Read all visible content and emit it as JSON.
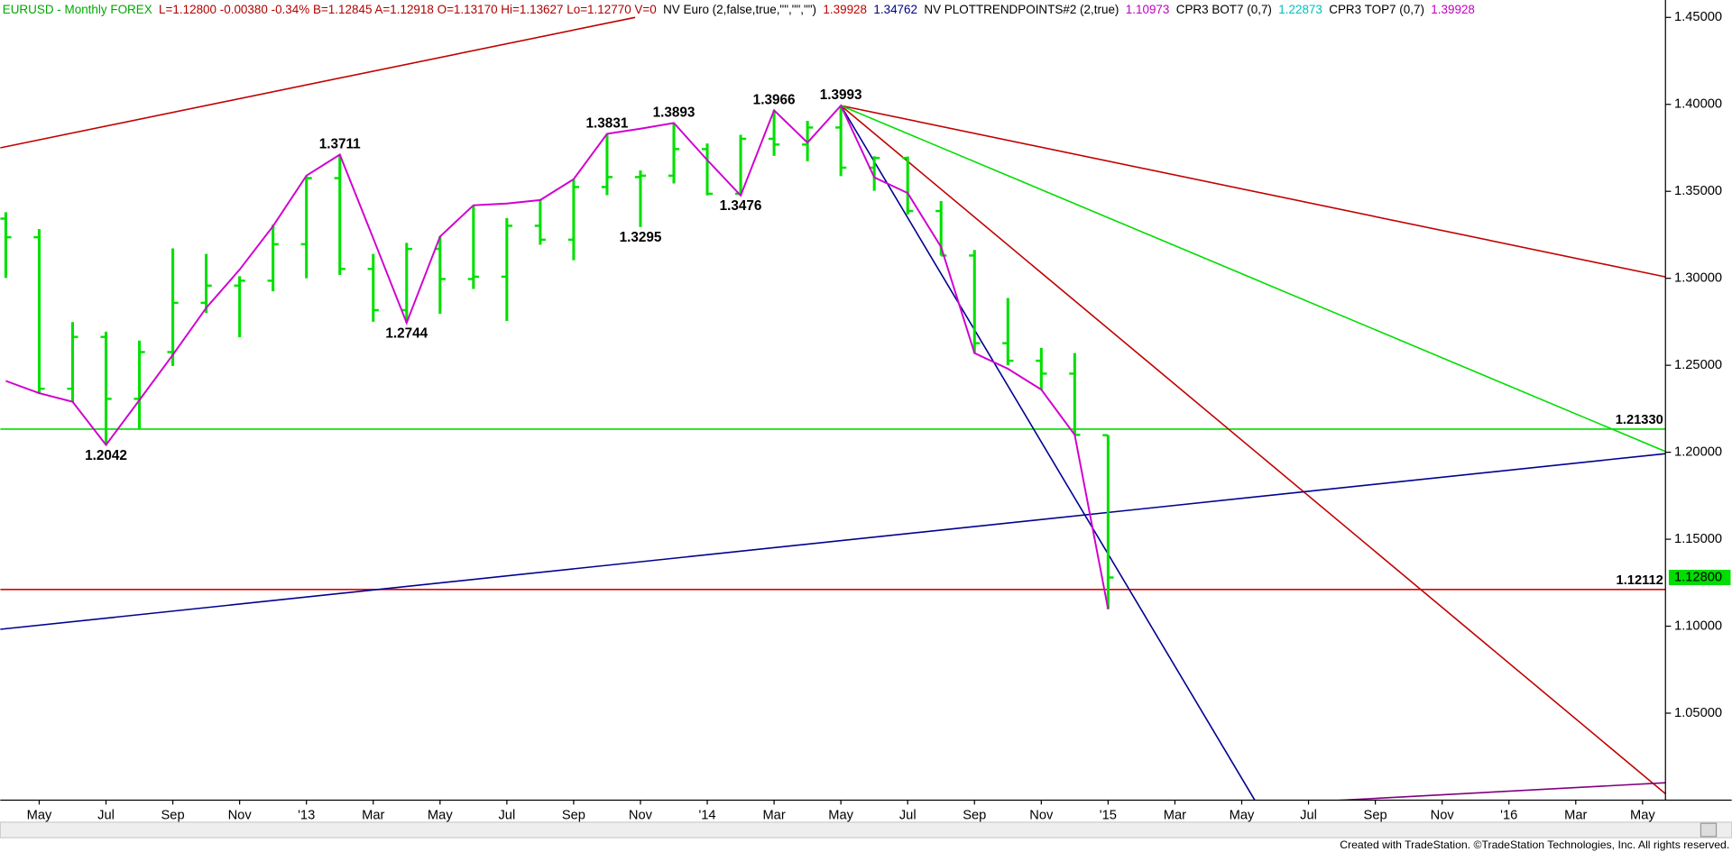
{
  "chart_data": {
    "type": "ohlc",
    "header": [
      {
        "text": "EURUSD - Monthly  FOREX",
        "color": "#00a800"
      },
      {
        "text": "L=1.12800  -0.00380  -0.34%  B=1.12845  A=1.12918  O=1.13170  Hi=1.13627  Lo=1.12770  V=0",
        "color": "#b00000"
      },
      {
        "text": "NV Euro (2,false,true,\"\",\"\",\"\")",
        "color": "#000000"
      },
      {
        "text": "1.39928",
        "color": "#c00000"
      },
      {
        "text": "1.34762",
        "color": "#000080"
      },
      {
        "text": "NV  PLOTTRENDPOINTS#2 (2,true)",
        "color": "#000000"
      },
      {
        "text": "1.10973",
        "color": "#c000c0"
      },
      {
        "text": "CPR3 BOT7 (0,7)",
        "color": "#000000"
      },
      {
        "text": "1.22873",
        "color": "#00c0c0"
      },
      {
        "text": "CPR3 TOP7 (0,7)",
        "color": "#000000"
      },
      {
        "text": "1.39928",
        "color": "#c000c0"
      }
    ],
    "footer": "Created with TradeStation. ©TradeStation Technologies, Inc. All rights reserved.",
    "categories": [
      null,
      "May",
      null,
      "Jul",
      null,
      "Sep",
      null,
      "Nov",
      null,
      "'13",
      null,
      "Mar",
      null,
      "May",
      null,
      "Jul",
      null,
      "Sep",
      null,
      "Nov",
      null,
      "'14",
      null,
      "Mar",
      null,
      "May",
      null,
      "Jul",
      null,
      "Sep",
      null,
      "Nov",
      null,
      "'15",
      null,
      "Mar",
      null,
      "May",
      null,
      "Jul",
      null,
      "Sep",
      null,
      "Nov",
      null,
      "'16",
      null,
      "Mar",
      null,
      "May"
    ],
    "open": [
      1.3343,
      1.3236,
      1.2365,
      1.2663,
      1.2307,
      1.2576,
      1.2859,
      1.2958,
      1.2986,
      1.3196,
      1.3576,
      1.3054,
      1.2817,
      1.3169,
      1.2996,
      1.3009,
      1.3302,
      1.3222,
      1.3525,
      1.3582,
      1.359,
      1.3743,
      1.3486,
      1.3802,
      1.3769,
      1.3867,
      1.3636,
      1.3692,
      1.3387,
      1.3131,
      1.2627,
      1.2526,
      1.2452,
      1.2098,
      null,
      null,
      null,
      null,
      null,
      null,
      null,
      null,
      null,
      null,
      null,
      null,
      null,
      null,
      null,
      null
    ],
    "high": [
      1.338,
      1.3283,
      1.2748,
      1.2693,
      1.2642,
      1.3172,
      1.314,
      1.3012,
      1.3308,
      1.3587,
      1.3711,
      1.314,
      1.3204,
      1.3242,
      1.3416,
      1.3346,
      1.3451,
      1.3568,
      1.3831,
      1.362,
      1.3893,
      1.3775,
      1.3825,
      1.3966,
      1.3905,
      1.3993,
      1.3702,
      1.37,
      1.3444,
      1.3163,
      1.2887,
      1.26,
      1.257,
      1.2098,
      null,
      null,
      null,
      null,
      null,
      null,
      null,
      null,
      null,
      null,
      null,
      null,
      null,
      null,
      null,
      null
    ],
    "low": [
      1.3002,
      1.2334,
      1.2288,
      1.2042,
      1.2134,
      1.2496,
      1.2801,
      1.2661,
      1.2925,
      1.3,
      1.3019,
      1.275,
      1.2744,
      1.2796,
      1.2939,
      1.2755,
      1.3193,
      1.3104,
      1.3478,
      1.3295,
      1.3545,
      1.3477,
      1.3476,
      1.3704,
      1.3673,
      1.3587,
      1.3503,
      1.3367,
      1.3131,
      1.2571,
      1.25,
      1.2359,
      1.21,
      1.1098,
      null,
      null,
      null,
      null,
      null,
      null,
      null,
      null,
      null,
      null,
      null,
      null,
      null,
      null,
      null,
      null
    ],
    "close": [
      1.3236,
      1.2365,
      1.2663,
      1.2307,
      1.2576,
      1.2859,
      1.2958,
      1.2986,
      1.3196,
      1.3576,
      1.3054,
      1.2817,
      1.3169,
      1.2996,
      1.3009,
      1.3302,
      1.3222,
      1.3525,
      1.3582,
      1.359,
      1.3743,
      1.3486,
      1.3802,
      1.3769,
      1.3867,
      1.3636,
      1.3692,
      1.3387,
      1.3131,
      1.2627,
      1.2526,
      1.2452,
      1.21,
      1.128,
      null,
      null,
      null,
      null,
      null,
      null,
      null,
      null,
      null,
      null,
      null,
      null,
      null,
      null,
      null,
      null
    ],
    "bar_color": "#00e000",
    "trend_line": {
      "color": "#d000d0",
      "values": [
        1.241,
        1.234,
        1.229,
        1.2042,
        1.23,
        1.256,
        1.283,
        1.305,
        1.33,
        1.359,
        1.3711,
        1.323,
        1.2744,
        1.324,
        1.342,
        1.343,
        1.345,
        1.357,
        1.3831,
        1.386,
        1.3893,
        1.368,
        1.3476,
        1.3966,
        1.378,
        1.3993,
        1.358,
        1.349,
        1.318,
        1.257,
        1.248,
        1.236,
        1.21,
        1.1098,
        null,
        null,
        null,
        null,
        null,
        null,
        null,
        null,
        null,
        null,
        null,
        null,
        null,
        null,
        null,
        null
      ]
    },
    "annotations": [
      "1.2042",
      "1.3711",
      "1.2744",
      "1.3831",
      "1.3295",
      "1.3893",
      "1.3476",
      "1.3966",
      "1.3993"
    ],
    "trendlines": [
      {
        "color": "#c00000",
        "from": [
          -0.17,
          1.375
        ],
        "to": [
          18.84,
          1.45
        ]
      },
      {
        "color": "#c00000",
        "from": [
          25,
          1.3993
        ],
        "to": [
          49.69,
          1.3008
        ]
      },
      {
        "color": "#c00000",
        "from": [
          25,
          1.3993
        ],
        "to": [
          49.69,
          1.0036
        ]
      },
      {
        "color": "#00dd00",
        "from": [
          25,
          1.3993
        ],
        "to": [
          49.69,
          1.2004
        ]
      },
      {
        "color": "#000090",
        "from": [
          25,
          1.3993
        ],
        "to": [
          37.39,
          1.0
        ]
      },
      {
        "color": "#000090",
        "from": [
          -0.17,
          1.0982
        ],
        "to": [
          49.69,
          1.1992
        ]
      },
      {
        "color": "#800080",
        "from": [
          38.58,
          0.9985
        ],
        "to": [
          49.69,
          1.01
        ]
      }
    ],
    "hlines": [
      {
        "value": 1.2133,
        "label": "1.21330",
        "color": "#00dd00"
      },
      {
        "value": 1.12112,
        "label": "1.12112",
        "color": "#e00000"
      }
    ],
    "last_price": {
      "value": 1.128,
      "label": "1.12800",
      "color": "#00dd00"
    },
    "ylim": [
      1.0,
      1.46
    ],
    "yticks": [
      {
        "value": 1.05,
        "label": "1.05000"
      },
      {
        "value": 1.1,
        "label": "1.10000"
      },
      {
        "value": 1.15,
        "label": "1.15000"
      },
      {
        "value": 1.2,
        "label": "1.20000"
      },
      {
        "value": 1.25,
        "label": "1.25000"
      },
      {
        "value": 1.3,
        "label": "1.30000"
      },
      {
        "value": 1.35,
        "label": "1.35000"
      },
      {
        "value": 1.4,
        "label": "1.40000"
      },
      {
        "value": 1.45,
        "label": "1.45000"
      }
    ]
  }
}
